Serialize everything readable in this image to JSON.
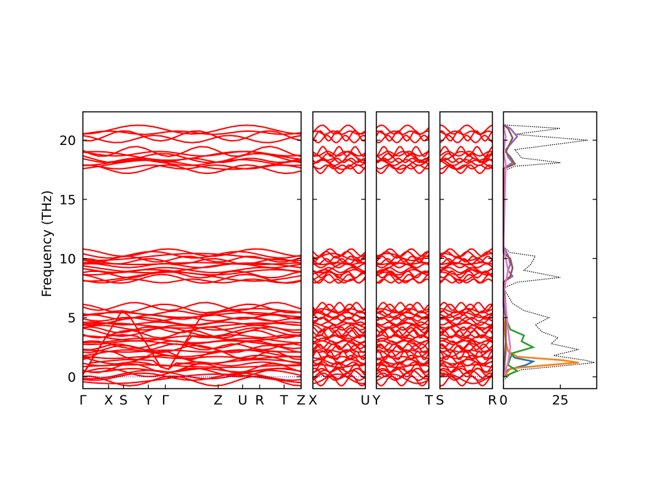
{
  "chart_data": {
    "type": "line",
    "title": "",
    "ylabel": "Frequency (THz)",
    "ylim": [
      -1,
      22.4
    ],
    "yticks": [
      0,
      5,
      10,
      15,
      20
    ],
    "grid": false,
    "band_color": "#ff0000",
    "zero_line_color": "#00008b",
    "dos_total_color": "#000000",
    "band_groups": [
      {
        "center": 20.5,
        "count": 4,
        "spread": 0.8
      },
      {
        "center": 18.3,
        "count": 9,
        "spread": 1.5
      },
      {
        "center": 9.3,
        "count": 14,
        "spread": 2.4
      },
      {
        "center": 2.8,
        "count": 36,
        "spread": 6.3
      }
    ],
    "panels": [
      {
        "ticks": [
          "Γ",
          "X",
          "S",
          "Y",
          "Γ",
          "Z",
          "U",
          "R",
          "T",
          "Z"
        ],
        "tick_positions": [
          0,
          0.118,
          0.186,
          0.3,
          0.378,
          0.62,
          0.732,
          0.81,
          0.922,
          1
        ]
      },
      {
        "ticks": [
          "X",
          "U"
        ],
        "tick_positions": [
          0,
          1
        ]
      },
      {
        "ticks": [
          "Y",
          "T"
        ],
        "tick_positions": [
          0,
          1
        ]
      },
      {
        "ticks": [
          "S",
          "R"
        ],
        "tick_positions": [
          0,
          1
        ]
      }
    ],
    "dos": {
      "xlim": [
        0,
        41
      ],
      "xticks": [
        0,
        25
      ],
      "series": [
        {
          "color": "#000000",
          "style": "dotted",
          "points": [
            [
              -0.3,
              0
            ],
            [
              0.2,
              3
            ],
            [
              0.6,
              8
            ],
            [
              1.0,
              30
            ],
            [
              1.2,
              40
            ],
            [
              1.4,
              36
            ],
            [
              1.8,
              22
            ],
            [
              2.3,
              33
            ],
            [
              2.8,
              21
            ],
            [
              3.3,
              24
            ],
            [
              3.8,
              17
            ],
            [
              4.4,
              14
            ],
            [
              5.0,
              20
            ],
            [
              5.6,
              9
            ],
            [
              6.2,
              4
            ],
            [
              7.5,
              0
            ],
            [
              8.0,
              6
            ],
            [
              8.4,
              25
            ],
            [
              9.0,
              9
            ],
            [
              9.5,
              12
            ],
            [
              10.2,
              14
            ],
            [
              10.5,
              3
            ],
            [
              11,
              0
            ],
            [
              17.4,
              0
            ],
            [
              17.8,
              5
            ],
            [
              18.1,
              25
            ],
            [
              18.5,
              8
            ],
            [
              19.2,
              5
            ],
            [
              20.0,
              37
            ],
            [
              20.5,
              5
            ],
            [
              21.0,
              25
            ],
            [
              21.3,
              0
            ]
          ]
        },
        {
          "color": "#1f77b4",
          "style": "solid",
          "points": [
            [
              0,
              0
            ],
            [
              0.6,
              2
            ],
            [
              1.0,
              10
            ],
            [
              1.3,
              13
            ],
            [
              1.6,
              5
            ],
            [
              2.2,
              2
            ],
            [
              3.0,
              1
            ],
            [
              5.5,
              1
            ],
            [
              7,
              0
            ]
          ]
        },
        {
          "color": "#ff7f0e",
          "style": "solid",
          "points": [
            [
              0,
              0
            ],
            [
              0.7,
              3
            ],
            [
              1.0,
              20
            ],
            [
              1.2,
              33
            ],
            [
              1.4,
              26
            ],
            [
              1.7,
              6
            ],
            [
              2.2,
              2
            ],
            [
              3.0,
              1
            ],
            [
              5,
              0
            ]
          ]
        },
        {
          "color": "#2ca02c",
          "style": "solid",
          "points": [
            [
              0,
              0
            ],
            [
              0.5,
              6
            ],
            [
              1.0,
              2
            ],
            [
              1.6,
              3
            ],
            [
              2.0,
              4
            ],
            [
              2.5,
              13
            ],
            [
              3.0,
              8
            ],
            [
              3.5,
              9
            ],
            [
              4.0,
              3
            ],
            [
              4.5,
              2
            ],
            [
              5.0,
              1
            ],
            [
              6,
              0
            ]
          ]
        },
        {
          "color": "#9467bd",
          "style": "solid",
          "points": [
            [
              0,
              0
            ],
            [
              2,
              1
            ],
            [
              5,
              1
            ],
            [
              6,
              0
            ],
            [
              8,
              0
            ],
            [
              8.5,
              4
            ],
            [
              9,
              2
            ],
            [
              9.5,
              3
            ],
            [
              10.3,
              2
            ],
            [
              11,
              0
            ],
            [
              17.6,
              0
            ],
            [
              18.1,
              4
            ],
            [
              18.6,
              2
            ],
            [
              19.2,
              1
            ],
            [
              20.3,
              6
            ],
            [
              21.0,
              3
            ],
            [
              21.3,
              0
            ]
          ]
        },
        {
          "color": "#8c564b",
          "style": "solid",
          "points": [
            [
              0,
              0
            ],
            [
              3,
              1
            ],
            [
              6,
              1
            ],
            [
              8,
              0
            ],
            [
              8.5,
              3
            ],
            [
              9.2,
              4
            ],
            [
              10,
              3
            ],
            [
              10.5,
              0
            ],
            [
              17.6,
              0
            ],
            [
              18.0,
              5
            ],
            [
              18.6,
              3
            ],
            [
              19,
              1
            ],
            [
              20.2,
              4
            ],
            [
              21.0,
              2
            ],
            [
              21.3,
              0
            ]
          ]
        },
        {
          "color": "#e377c2",
          "style": "solid",
          "points": [
            [
              0,
              0
            ],
            [
              1.2,
              2
            ],
            [
              2.5,
              3
            ],
            [
              4,
              2
            ],
            [
              6,
              1
            ],
            [
              7,
              0
            ],
            [
              9,
              2
            ],
            [
              10,
              1
            ],
            [
              11,
              0
            ],
            [
              18,
              1
            ],
            [
              19,
              0
            ],
            [
              20.3,
              1
            ],
            [
              21.2,
              0
            ]
          ]
        }
      ]
    }
  }
}
